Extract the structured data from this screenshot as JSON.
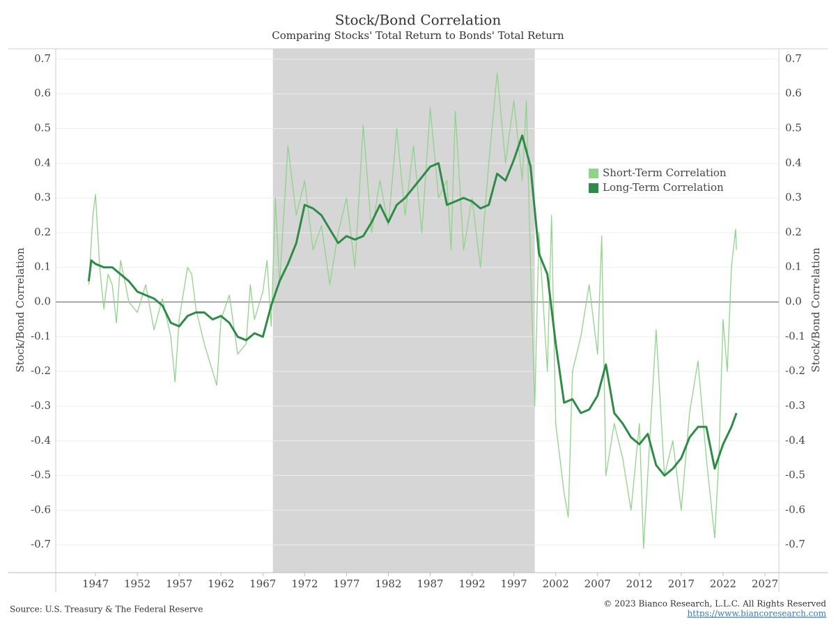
{
  "chart_data": {
    "type": "line",
    "title": "Stock/Bond Correlation",
    "subtitle": "Comparing Stocks' Total Return to Bonds' Total Return",
    "ylabel": "Stock/Bond Correlation",
    "y2label": "Stock/Bond Correlation",
    "source": "Source: U.S. Treasury & The Federal Reserve",
    "copyright": "© 2023 Bianco Research, L.L.C. All Rights Reserved",
    "url": "https://www.biancoresearch.com",
    "xlim": [
      1942.25,
      2028.67
    ],
    "xticks": [
      1947,
      1952,
      1957,
      1962,
      1967,
      1972,
      1977,
      1982,
      1987,
      1992,
      1997,
      2002,
      2007,
      2012,
      2017,
      2022,
      2027
    ],
    "ylim": [
      -0.78,
      0.73
    ],
    "yticks": [
      0.7,
      0.6,
      0.5,
      0.4,
      0.3,
      0.2,
      0.1,
      {
        "value": 0,
        "label": "0.0"
      },
      -0.1,
      -0.2,
      -0.3,
      -0.4,
      -0.5,
      -0.6,
      -0.7
    ],
    "y2lim": [
      -0.78,
      0.73
    ],
    "y2ticks": [
      0.7,
      0.6,
      0.5,
      0.4,
      0.3,
      0.2,
      0.1,
      {
        "value": 0,
        "label": "0.0"
      },
      -0.1,
      -0.2,
      -0.3,
      -0.4,
      -0.5,
      -0.6,
      -0.7
    ],
    "grid": true,
    "legend_position": "upper right",
    "shaded_regions": [
      {
        "start": 1968.2,
        "end": 1999.5,
        "color": "#d6d6d6"
      }
    ],
    "series": [
      {
        "name": "Short-Term Correlation",
        "color": "#8fd48a",
        "x": [
          1946.2,
          1946.7,
          1947,
          1947.5,
          1948,
          1948.5,
          1949,
          1949.5,
          1950,
          1951,
          1952,
          1953,
          1954,
          1955,
          1956,
          1956.5,
          1957,
          1958,
          1958.5,
          1959,
          1960,
          1961,
          1961.5,
          1962,
          1963,
          1964,
          1965,
          1965.5,
          1966,
          1967,
          1967.5,
          1968,
          1968.5,
          1969,
          1970,
          1971,
          1972,
          1973,
          1974,
          1975,
          1976,
          1977,
          1978,
          1979,
          1980,
          1981,
          1982,
          1983,
          1984,
          1985,
          1986,
          1987,
          1988,
          1989,
          1989.5,
          1990,
          1991,
          1992,
          1993,
          1994,
          1995,
          1996,
          1997,
          1998,
          1998.5,
          1999,
          1999.5,
          2000,
          2001,
          2001.5,
          2002,
          2003,
          2003.5,
          2004,
          2005,
          2006,
          2007,
          2007.5,
          2008,
          2009,
          2010,
          2011,
          2012,
          2012.5,
          2013,
          2014,
          2015,
          2016,
          2017,
          2018,
          2019,
          2020,
          2021,
          2021.5,
          2022,
          2022.5,
          2023,
          2023.5,
          2023.6
        ],
        "values": [
          0.05,
          0.25,
          0.31,
          0.1,
          -0.02,
          0.08,
          0.05,
          -0.06,
          0.12,
          0.0,
          -0.03,
          0.05,
          -0.08,
          0.01,
          -0.1,
          -0.23,
          -0.05,
          0.1,
          0.08,
          -0.02,
          -0.12,
          -0.2,
          -0.24,
          -0.05,
          0.02,
          -0.15,
          -0.12,
          0.05,
          -0.05,
          0.03,
          0.12,
          -0.07,
          0.3,
          0.05,
          0.45,
          0.25,
          0.35,
          0.15,
          0.22,
          0.05,
          0.2,
          0.3,
          0.1,
          0.51,
          0.2,
          0.35,
          0.22,
          0.5,
          0.25,
          0.45,
          0.2,
          0.56,
          0.3,
          0.35,
          0.15,
          0.55,
          0.15,
          0.3,
          0.1,
          0.4,
          0.66,
          0.4,
          0.58,
          0.35,
          0.58,
          0.1,
          -0.3,
          0.2,
          -0.2,
          0.25,
          -0.35,
          -0.55,
          -0.62,
          -0.2,
          -0.1,
          0.05,
          -0.15,
          0.19,
          -0.5,
          -0.35,
          -0.45,
          -0.6,
          -0.35,
          -0.71,
          -0.5,
          -0.08,
          -0.5,
          -0.4,
          -0.6,
          -0.32,
          -0.17,
          -0.45,
          -0.68,
          -0.45,
          -0.05,
          -0.2,
          0.1,
          0.21,
          0.15
        ]
      },
      {
        "name": "Long-Term Correlation",
        "color": "#2e8b47",
        "x": [
          1946.2,
          1946.5,
          1947,
          1948,
          1949,
          1950,
          1951,
          1952,
          1953,
          1954,
          1955,
          1956,
          1957,
          1958,
          1959,
          1960,
          1961,
          1962,
          1963,
          1964,
          1965,
          1966,
          1967,
          1968,
          1969,
          1970,
          1971,
          1972,
          1973,
          1974,
          1975,
          1976,
          1977,
          1978,
          1979,
          1980,
          1981,
          1982,
          1983,
          1984,
          1985,
          1986,
          1987,
          1988,
          1989,
          1990,
          1991,
          1992,
          1993,
          1994,
          1995,
          1996,
          1997,
          1998,
          1999,
          2000,
          2001,
          2002,
          2003,
          2004,
          2005,
          2006,
          2007,
          2008,
          2009,
          2010,
          2011,
          2012,
          2013,
          2014,
          2015,
          2016,
          2017,
          2018,
          2019,
          2020,
          2021,
          2022,
          2023,
          2023.6
        ],
        "values": [
          0.06,
          0.12,
          0.11,
          0.1,
          0.1,
          0.08,
          0.06,
          0.03,
          0.02,
          0.01,
          -0.01,
          -0.06,
          -0.07,
          -0.04,
          -0.03,
          -0.03,
          -0.05,
          -0.04,
          -0.06,
          -0.1,
          -0.11,
          -0.09,
          -0.1,
          -0.01,
          0.06,
          0.11,
          0.17,
          0.28,
          0.27,
          0.25,
          0.21,
          0.17,
          0.19,
          0.18,
          0.19,
          0.23,
          0.28,
          0.23,
          0.28,
          0.3,
          0.33,
          0.36,
          0.39,
          0.4,
          0.28,
          0.29,
          0.3,
          0.29,
          0.27,
          0.28,
          0.37,
          0.35,
          0.41,
          0.48,
          0.39,
          0.14,
          0.08,
          -0.12,
          -0.29,
          -0.28,
          -0.32,
          -0.31,
          -0.27,
          -0.18,
          -0.32,
          -0.35,
          -0.39,
          -0.41,
          -0.38,
          -0.47,
          -0.5,
          -0.48,
          -0.45,
          -0.39,
          -0.36,
          -0.36,
          -0.48,
          -0.41,
          -0.36,
          -0.32
        ]
      }
    ]
  }
}
